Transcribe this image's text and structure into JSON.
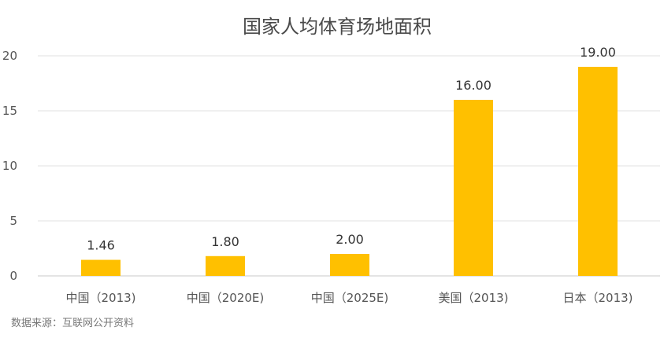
{
  "chart_data": {
    "type": "bar",
    "title": "国家人均体育场地面积",
    "categories": [
      "中国（2013)",
      "中国（2020E)",
      "中国（2025E)",
      "美国（2013)",
      "日本（2013)"
    ],
    "values": [
      1.46,
      1.8,
      2.0,
      16.0,
      19.0
    ],
    "data_labels": [
      "1.46",
      "1.80",
      "2.00",
      "16.00",
      "19.00"
    ],
    "yticks": [
      "0",
      "5",
      "10",
      "15",
      "20"
    ],
    "ylim": [
      0,
      20
    ],
    "grid": true,
    "legend": "none",
    "bar_color": "#FFC000"
  },
  "source": "数据来源：互联网公开资料",
  "colors": {
    "bar": "#FFC000",
    "grid": "#e0e0e0",
    "axis": "#c8c8c8"
  }
}
